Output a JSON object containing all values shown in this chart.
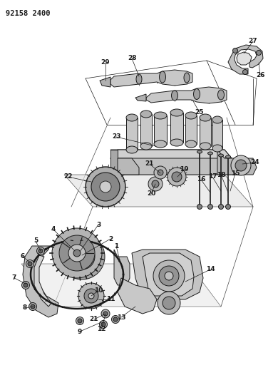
{
  "title": "92158 2400",
  "background_color": "#ffffff",
  "figsize": [
    3.83,
    5.33
  ],
  "dpi": 100,
  "lc": "#1a1a1a",
  "lw": 0.7
}
